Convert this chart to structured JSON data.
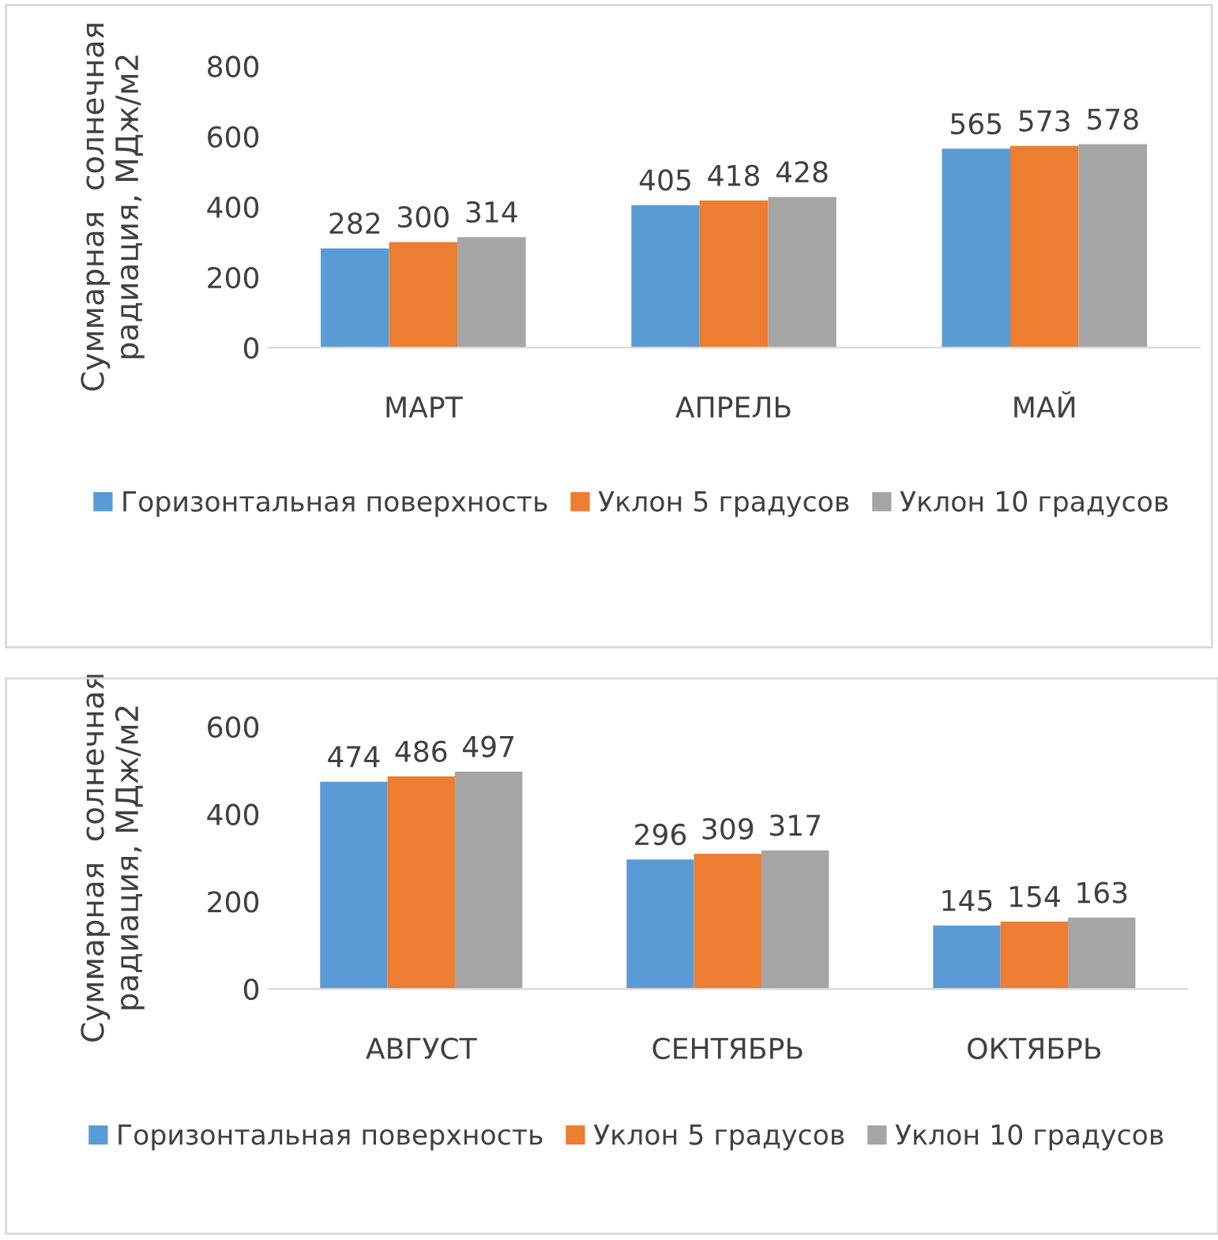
{
  "chart_data": [
    {
      "type": "bar",
      "ylabel": "Суммарная  солнечная\nрадиация, МДж/м2",
      "categories": [
        "МАРТ",
        "АПРЕЛЬ",
        "МАЙ"
      ],
      "series": [
        {
          "name": "Горизонтальная поверхность",
          "color": "#5b9bd5",
          "values": [
            282,
            405,
            565
          ]
        },
        {
          "name": "Уклон 5 градусов",
          "color": "#ed7d31",
          "values": [
            300,
            418,
            573
          ]
        },
        {
          "name": "Уклон 10 градусов",
          "color": "#a5a5a5",
          "values": [
            314,
            428,
            578
          ]
        }
      ],
      "ylim": [
        0,
        800
      ],
      "yticks": [
        0,
        200,
        400,
        600,
        800
      ],
      "data_labels": true,
      "legend": "bottom",
      "grid": false
    },
    {
      "type": "bar",
      "ylabel": "Суммарная  солнечная\nрадиация, МДж/м2",
      "categories": [
        "АВГУСТ",
        "СЕНТЯБРЬ",
        "ОКТЯБРЬ"
      ],
      "series": [
        {
          "name": "Горизонтальная поверхность",
          "color": "#5b9bd5",
          "values": [
            474,
            296,
            145
          ]
        },
        {
          "name": "Уклон 5 градусов",
          "color": "#ed7d31",
          "values": [
            486,
            309,
            154
          ]
        },
        {
          "name": "Уклон 10 градусов",
          "color": "#a5a5a5",
          "values": [
            497,
            317,
            163
          ]
        }
      ],
      "ylim": [
        0,
        600
      ],
      "yticks": [
        0,
        200,
        400,
        600
      ],
      "data_labels": true,
      "legend": "bottom",
      "grid": false
    }
  ]
}
